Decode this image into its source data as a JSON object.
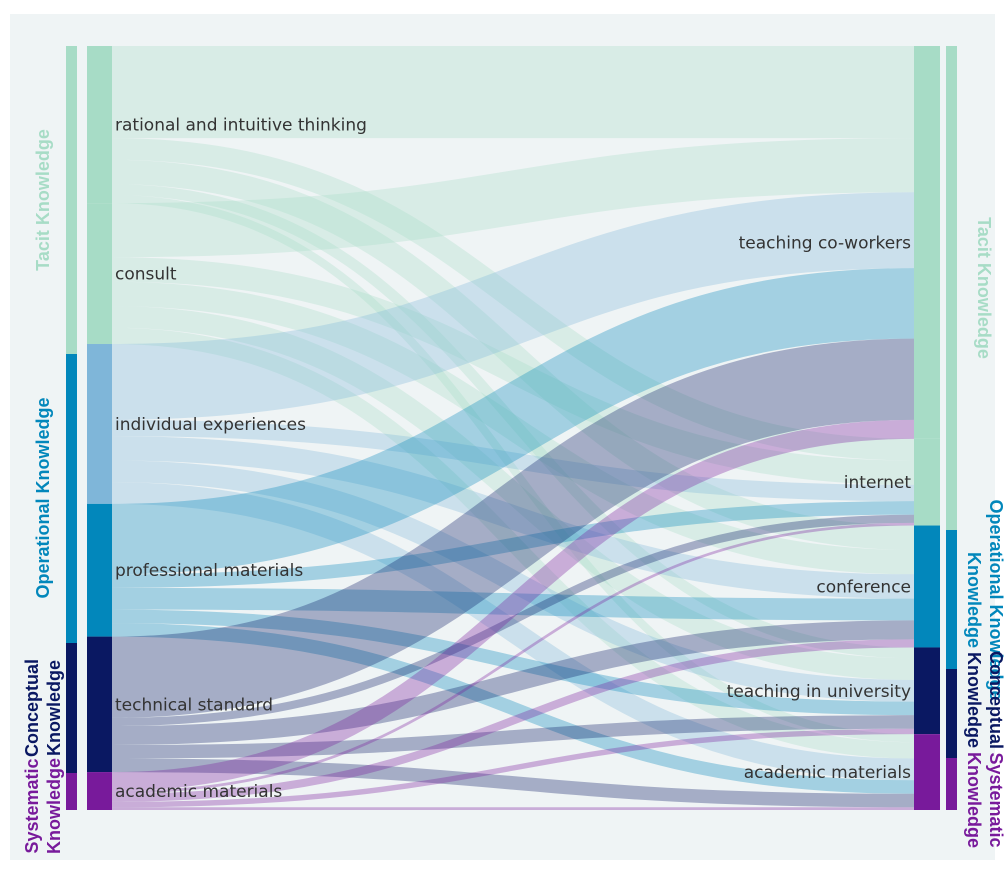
{
  "colors": {
    "background": "#eff4f5",
    "tacit": "#a7dcc6",
    "operational": "#0287bb",
    "operational_light": "#7fb6d9",
    "conceptual": "#0a1862",
    "systematic": "#781a9b"
  },
  "categories": {
    "tacit": "Tacit  Knowledge",
    "operational": "Operational Knowledge",
    "conceptual_line1": "Conceptual",
    "conceptual_line2": "Knowledge",
    "systematic_line1": "Systematic",
    "systematic_line2": "Knowledge"
  },
  "left_nodes": [
    {
      "id": "rational",
      "label": "rational and intuitive thinking",
      "group": "tacit"
    },
    {
      "id": "consult",
      "label": "consult",
      "group": "tacit"
    },
    {
      "id": "individual",
      "label": "individual experiences",
      "group": "operational"
    },
    {
      "id": "professional",
      "label": "professional materials",
      "group": "operational"
    },
    {
      "id": "technical",
      "label": "technical standard",
      "group": "conceptual"
    },
    {
      "id": "academic_l",
      "label": "academic materials",
      "group": "systematic"
    }
  ],
  "right_nodes": [
    {
      "id": "teaching_cw",
      "label": "teaching co-workers",
      "group": "tacit"
    },
    {
      "id": "internet",
      "label": "internet",
      "group": "tacit"
    },
    {
      "id": "conference",
      "label": "conference",
      "group": "operational"
    },
    {
      "id": "teaching_uni",
      "label": "teaching in university",
      "group": "conceptual"
    },
    {
      "id": "academic_r",
      "label": "academic materials",
      "group": "systematic"
    }
  ],
  "links": [
    {
      "source": "rational",
      "target": "teaching_cw",
      "value": 34
    },
    {
      "source": "rational",
      "target": "internet",
      "value": 8
    },
    {
      "source": "rational",
      "target": "conference",
      "value": 9
    },
    {
      "source": "rational",
      "target": "teaching_uni",
      "value": 4
    },
    {
      "source": "rational",
      "target": "academic_r",
      "value": 3
    },
    {
      "source": "consult",
      "target": "teaching_cw",
      "value": 20
    },
    {
      "source": "consult",
      "target": "internet",
      "value": 9
    },
    {
      "source": "consult",
      "target": "conference",
      "value": 9
    },
    {
      "source": "consult",
      "target": "teaching_uni",
      "value": 8
    },
    {
      "source": "consult",
      "target": "academic_r",
      "value": 6
    },
    {
      "source": "individual",
      "target": "teaching_cw",
      "value": 28
    },
    {
      "source": "individual",
      "target": "internet",
      "value": 6
    },
    {
      "source": "individual",
      "target": "conference",
      "value": 9
    },
    {
      "source": "individual",
      "target": "teaching_uni",
      "value": 8
    },
    {
      "source": "individual",
      "target": "academic_r",
      "value": 8
    },
    {
      "source": "professional",
      "target": "teaching_cw",
      "value": 26
    },
    {
      "source": "professional",
      "target": "internet",
      "value": 5
    },
    {
      "source": "professional",
      "target": "conference",
      "value": 8
    },
    {
      "source": "professional",
      "target": "teaching_uni",
      "value": 5
    },
    {
      "source": "professional",
      "target": "academic_r",
      "value": 5
    },
    {
      "source": "technical",
      "target": "teaching_cw",
      "value": 30
    },
    {
      "source": "technical",
      "target": "internet",
      "value": 3
    },
    {
      "source": "technical",
      "target": "conference",
      "value": 7
    },
    {
      "source": "technical",
      "target": "teaching_uni",
      "value": 5
    },
    {
      "source": "technical",
      "target": "academic_r",
      "value": 5
    },
    {
      "source": "academic_l",
      "target": "teaching_cw",
      "value": 7
    },
    {
      "source": "academic_l",
      "target": "internet",
      "value": 1
    },
    {
      "source": "academic_l",
      "target": "conference",
      "value": 3
    },
    {
      "source": "academic_l",
      "target": "teaching_uni",
      "value": 2
    },
    {
      "source": "academic_l",
      "target": "academic_r",
      "value": 1
    }
  ]
}
